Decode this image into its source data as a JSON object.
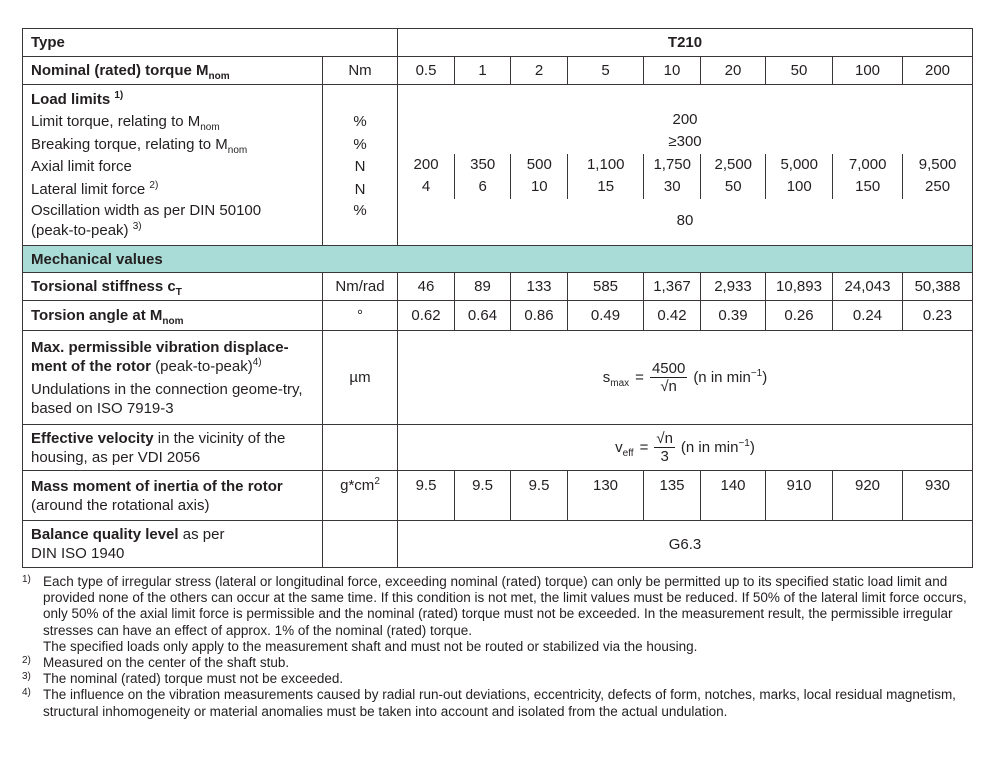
{
  "header": {
    "type_label": "Type",
    "type_value": "T210"
  },
  "nominal": {
    "label": "Nominal (rated) torque M",
    "label_sub": "nom",
    "unit": "Nm",
    "values": [
      "0.5",
      "1",
      "2",
      "5",
      "10",
      "20",
      "50",
      "100",
      "200"
    ]
  },
  "load_limits": {
    "title": "Load limits",
    "title_sup": "1)",
    "limit_torque": {
      "label": "Limit torque, relating to M",
      "sub": "nom",
      "unit": "%",
      "value": "200"
    },
    "breaking_torque": {
      "label": "Breaking torque, relating to M",
      "sub": "nom",
      "unit": "%",
      "value": "≥300"
    },
    "axial": {
      "label": "Axial limit force",
      "unit": "N",
      "values": [
        "200",
        "350",
        "500",
        "1,100",
        "1,750",
        "2,500",
        "5,000",
        "7,000",
        "9,500"
      ]
    },
    "lateral": {
      "label": "Lateral limit force",
      "sup": "2)",
      "unit": "N",
      "values": [
        "4",
        "6",
        "10",
        "15",
        "30",
        "50",
        "100",
        "150",
        "250"
      ]
    },
    "oscillation": {
      "label1": "Oscillation width as per DIN 50100",
      "label2": "(peak-to-peak)",
      "sup": "3)",
      "unit": "%",
      "value": "80"
    }
  },
  "mechanical": {
    "title": "Mechanical values",
    "accent": "#a9dcd6",
    "stiffness": {
      "label": "Torsional stiffness c",
      "sub": "T",
      "unit": "Nm/rad",
      "values": [
        "46",
        "89",
        "133",
        "585",
        "1,367",
        "2,933",
        "10,893",
        "24,043",
        "50,388"
      ]
    },
    "angle": {
      "label": "Torsion angle at M",
      "sub": "nom",
      "unit": "°",
      "values": [
        "0.62",
        "0.64",
        "0.86",
        "0.49",
        "0.42",
        "0.39",
        "0.26",
        "0.24",
        "0.23"
      ]
    },
    "vibration": {
      "label_bold": "Max. permissible vibration displace-ment of the rotor",
      "label_rest": " (peak-to-peak)",
      "sup": "4)",
      "label2": "Undulations in the connection geome-try, based on ISO 7919-3",
      "unit": "µm",
      "formula": {
        "lhs": "s",
        "lhs_sub": "max",
        "eq": "=",
        "num": "4500",
        "den": "√n",
        "note": "(n in  min",
        "note_sup": "−1",
        "note_end": ")"
      }
    },
    "velocity": {
      "label_bold": "Effective velocity",
      "label_rest": " in the vicinity of the housing, as per VDI 2056",
      "formula": {
        "lhs": "v",
        "lhs_sub": "eff",
        "eq": "=",
        "num": "√n",
        "den": "3",
        "note": "(n in  min",
        "note_sup": "−1",
        "note_end": ")"
      }
    },
    "inertia": {
      "label_bold": "Mass moment of inertia of the rotor",
      "label2": "(around the rotational axis)",
      "unit": "g*cm",
      "unit_sup": "2",
      "values": [
        "9.5",
        "9.5",
        "9.5",
        "130",
        "135",
        "140",
        "910",
        "920",
        "930"
      ]
    },
    "balance": {
      "label_bold": "Balance quality level",
      "label_rest": " as per",
      "label2": "DIN ISO 1940",
      "value": "G6.3"
    }
  },
  "footnotes": [
    {
      "mark": "1)",
      "text": "Each type of irregular stress (lateral or longitudinal force, exceeding nominal (rated) torque) can only be permitted up to its specified static load limit and provided none of the others can occur at the same time. If this condition is not met, the limit values must be reduced. If 50% of the lateral limit force occurs, only 50% of the axial limit force is permissible and the nominal (rated) torque must not be exceeded. In the measurement result, the permissible irregular stresses can have an effect of approx. 1% of the nominal (rated) torque.",
      "text2": "The specified loads only apply to the measurement shaft and must not be routed or stabilized via the housing."
    },
    {
      "mark": "2)",
      "text": "Measured on the center of the shaft stub."
    },
    {
      "mark": "3)",
      "text": "The nominal (rated) torque must not be exceeded."
    },
    {
      "mark": "4)",
      "text": "The influence on the vibration measurements caused by radial run-out deviations, eccentricity, defects of form, notches, marks, local residual magnetism, structural inhomogeneity or material anomalies must be taken into account and isolated from the actual undulation."
    }
  ]
}
